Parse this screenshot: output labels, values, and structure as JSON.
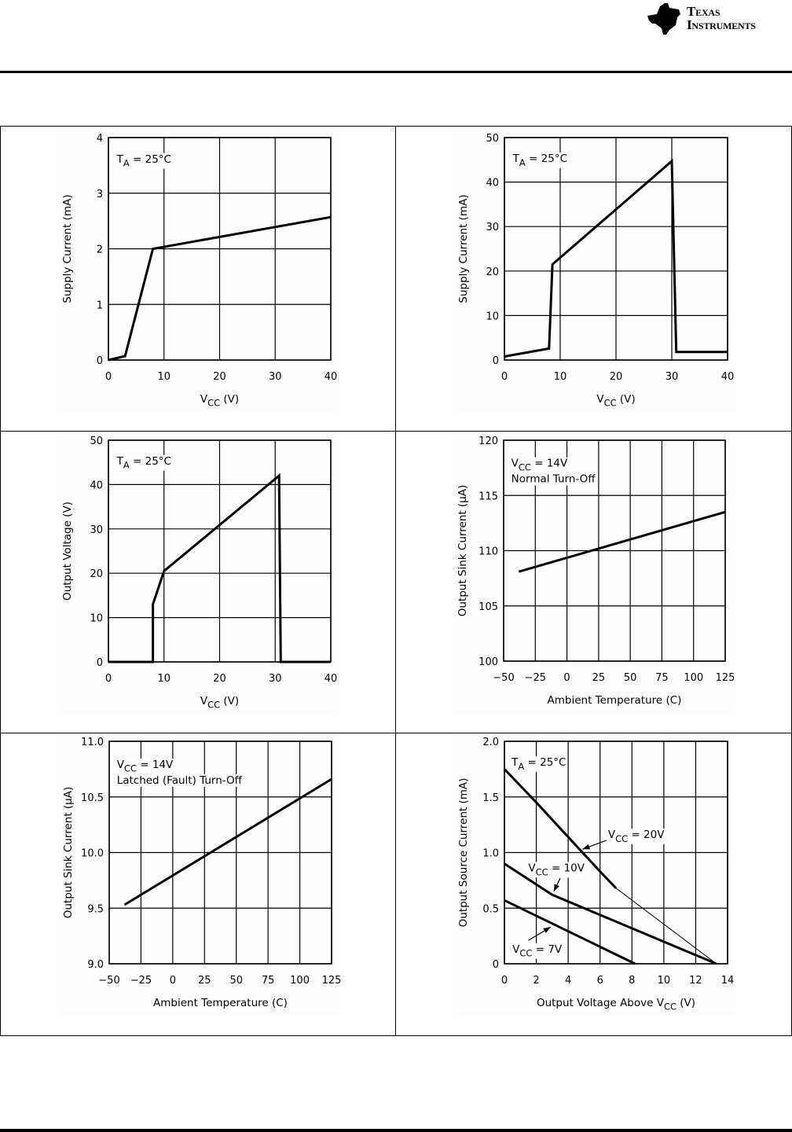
{
  "header": {
    "brand_line1": "Texas",
    "brand_line2": "Instruments",
    "logo_icon": "ti-logo-icon"
  },
  "chart_data": [
    {
      "id": "supply-current-vs-vcc-a",
      "type": "line",
      "title": "",
      "xlabel": "V_CC (V)",
      "xlabel_main": "V",
      "xlabel_sub": "CC",
      "xlabel_tail": " (V)",
      "ylabel": "Supply Current (mA)",
      "xlim": [
        0,
        40
      ],
      "ylim": [
        0,
        4
      ],
      "xticks": [
        0,
        10,
        20,
        30,
        40
      ],
      "yticks": [
        0,
        1,
        2,
        3,
        4
      ],
      "xtick_labels": [
        "0",
        "10",
        "20",
        "30",
        "40"
      ],
      "ytick_labels": [
        "0",
        "1",
        "2",
        "3",
        "4"
      ],
      "grid": true,
      "annotations": [
        {
          "main": "T",
          "sub": "A",
          "tail": " = 25°C",
          "x": 1.5,
          "y": 3.55
        }
      ],
      "series": [
        {
          "name": "T_A = 25°C",
          "weight": "bold",
          "points": [
            [
              0,
              0
            ],
            [
              3,
              0.07
            ],
            [
              8,
              2.0
            ],
            [
              40,
              2.57
            ]
          ]
        }
      ]
    },
    {
      "id": "supply-current-vs-vcc-b",
      "type": "line",
      "title": "",
      "xlabel": "V_CC (V)",
      "xlabel_main": "V",
      "xlabel_sub": "CC",
      "xlabel_tail": " (V)",
      "ylabel": "Supply Current (mA)",
      "xlim": [
        0,
        40
      ],
      "ylim": [
        0,
        50
      ],
      "xticks": [
        0,
        10,
        20,
        30,
        40
      ],
      "yticks": [
        0,
        10,
        20,
        30,
        40,
        50
      ],
      "xtick_labels": [
        "0",
        "10",
        "20",
        "30",
        "40"
      ],
      "ytick_labels": [
        "0",
        "10",
        "20",
        "30",
        "40",
        "50"
      ],
      "grid": true,
      "annotations": [
        {
          "main": "T",
          "sub": "A",
          "tail": " = 25°C",
          "x": 1.5,
          "y": 44.5
        }
      ],
      "series": [
        {
          "name": "T_A = 25°C",
          "weight": "bold",
          "points": [
            [
              0,
              0.8
            ],
            [
              8,
              2.6
            ],
            [
              8.6,
              21.5
            ],
            [
              30,
              44.7
            ],
            [
              30.8,
              1.8
            ],
            [
              40,
              1.8
            ]
          ]
        }
      ]
    },
    {
      "id": "output-voltage-vs-vcc",
      "type": "line",
      "title": "",
      "xlabel": "V_CC (V)",
      "xlabel_main": "V",
      "xlabel_sub": "CC",
      "xlabel_tail": " (V)",
      "ylabel": "Output Voltage (V)",
      "xlim": [
        0,
        40
      ],
      "ylim": [
        0,
        50
      ],
      "xticks": [
        0,
        10,
        20,
        30,
        40
      ],
      "yticks": [
        0,
        10,
        20,
        30,
        40,
        50
      ],
      "xtick_labels": [
        "0",
        "10",
        "20",
        "30",
        "40"
      ],
      "ytick_labels": [
        "0",
        "10",
        "20",
        "30",
        "40",
        "50"
      ],
      "grid": true,
      "annotations": [
        {
          "main": "T",
          "sub": "A",
          "tail": " = 25°C",
          "x": 1.5,
          "y": 44.5
        }
      ],
      "series": [
        {
          "name": "T_A = 25°C",
          "weight": "bold",
          "points": [
            [
              0,
              0
            ],
            [
              8,
              0
            ],
            [
              8,
              13
            ],
            [
              10,
              20.5
            ],
            [
              30.7,
              42
            ],
            [
              31,
              0
            ],
            [
              40,
              0
            ]
          ]
        }
      ]
    },
    {
      "id": "sink-current-normal-turnoff",
      "type": "line",
      "title": "",
      "xlabel": "Ambient Temperature (C)",
      "ylabel": "Output Sink Current (μA)",
      "xlim": [
        -50,
        125
      ],
      "ylim": [
        100,
        120
      ],
      "xticks": [
        -50,
        -25,
        0,
        25,
        50,
        75,
        100,
        125
      ],
      "yticks": [
        100,
        105,
        110,
        115,
        120
      ],
      "xtick_labels": [
        "−50",
        "−25",
        "0",
        "25",
        "50",
        "75",
        "100",
        "125"
      ],
      "ytick_labels": [
        "100",
        "105",
        "110",
        "115",
        "120"
      ],
      "grid": true,
      "annotations": [
        {
          "main": "V",
          "sub": "CC",
          "tail": " = 14V",
          "x": -44,
          "y": 117.6
        },
        {
          "main": "Normal Turn-Off",
          "sub": "",
          "tail": "",
          "x": -44,
          "y": 116.2
        }
      ],
      "series": [
        {
          "name": "V_CC = 14V Normal Turn-Off",
          "weight": "bold",
          "points": [
            [
              -38,
              108.1
            ],
            [
              125,
              113.5
            ]
          ]
        }
      ]
    },
    {
      "id": "sink-current-latched-turnoff",
      "type": "line",
      "title": "",
      "xlabel": "Ambient Temperature (C)",
      "ylabel": "Output Sink Current (μA)",
      "xlim": [
        -50,
        125
      ],
      "ylim": [
        9.0,
        11.0
      ],
      "xticks": [
        -50,
        -25,
        0,
        25,
        50,
        75,
        100,
        125
      ],
      "yticks": [
        9.0,
        9.5,
        10.0,
        10.5,
        11.0
      ],
      "xtick_labels": [
        "−50",
        "−25",
        "0",
        "25",
        "50",
        "75",
        "100",
        "125"
      ],
      "ytick_labels": [
        "9.0",
        "9.5",
        "10.0",
        "10.5",
        "11.0"
      ],
      "grid": true,
      "annotations": [
        {
          "main": "V",
          "sub": "CC",
          "tail": " = 14V",
          "x": -44,
          "y": 10.76
        },
        {
          "main": "Latched (Fault) Turn-Off",
          "sub": "",
          "tail": "",
          "x": -44,
          "y": 10.62
        }
      ],
      "series": [
        {
          "name": "V_CC = 14V Latched (Fault) Turn-Off",
          "weight": "bold",
          "points": [
            [
              -38,
              9.53
            ],
            [
              125,
              10.66
            ]
          ]
        }
      ]
    },
    {
      "id": "source-current-vs-output-voltage",
      "type": "line",
      "title": "",
      "xlabel": "Output Voltage Above V_CC (V)",
      "xlabel_main": "Output Voltage Above V",
      "xlabel_sub": "CC",
      "xlabel_tail": " (V)",
      "ylabel": "Output Source Current (mA)",
      "xlim": [
        0,
        14
      ],
      "ylim": [
        0,
        2.0
      ],
      "xticks": [
        0,
        2,
        4,
        6,
        8,
        10,
        12,
        14
      ],
      "yticks": [
        0,
        0.5,
        1.0,
        1.5,
        2.0
      ],
      "xtick_labels": [
        "0",
        "2",
        "4",
        "6",
        "8",
        "10",
        "12",
        "14"
      ],
      "ytick_labels": [
        "0",
        "0.5",
        "1.0",
        "1.5",
        "2.0"
      ],
      "grid": true,
      "annotations": [
        {
          "main": "T",
          "sub": "A",
          "tail": " = 25°C",
          "x": 0.45,
          "y": 1.78
        },
        {
          "main": "V",
          "sub": "CC",
          "tail": " = 20V",
          "x": 6.5,
          "y": 1.13,
          "arrow_from": [
            6.4,
            1.11
          ],
          "arrow_to": [
            4.9,
            1.03
          ]
        },
        {
          "main": "V",
          "sub": "CC",
          "tail": " = 10V",
          "x": 1.5,
          "y": 0.83,
          "arrow_from": [
            3.5,
            0.77
          ],
          "arrow_to": [
            3.1,
            0.65
          ]
        },
        {
          "main": "V",
          "sub": "CC",
          "tail": " = 7V",
          "x": 0.5,
          "y": 0.1,
          "arrow_from": [
            1.5,
            0.21
          ],
          "arrow_to": [
            2.9,
            0.33
          ]
        }
      ],
      "series": [
        {
          "name": "V_CC = 20V",
          "weight": "bold",
          "points": [
            [
              0,
              1.75
            ],
            [
              2,
              1.45
            ],
            [
              4,
              1.14
            ],
            [
              6,
              0.83
            ],
            [
              7,
              0.68
            ]
          ]
        },
        {
          "name": "V_CC = 20V (extrapolated)",
          "weight": "thin",
          "points": [
            [
              7,
              0.68
            ],
            [
              13.3,
              0
            ]
          ]
        },
        {
          "name": "V_CC = 10V",
          "weight": "bold",
          "points": [
            [
              0,
              0.9
            ],
            [
              3,
              0.62
            ],
            [
              13.3,
              0
            ]
          ]
        },
        {
          "name": "V_CC = 7V",
          "weight": "bold",
          "points": [
            [
              0,
              0.57
            ],
            [
              8.2,
              0
            ]
          ]
        }
      ]
    }
  ]
}
